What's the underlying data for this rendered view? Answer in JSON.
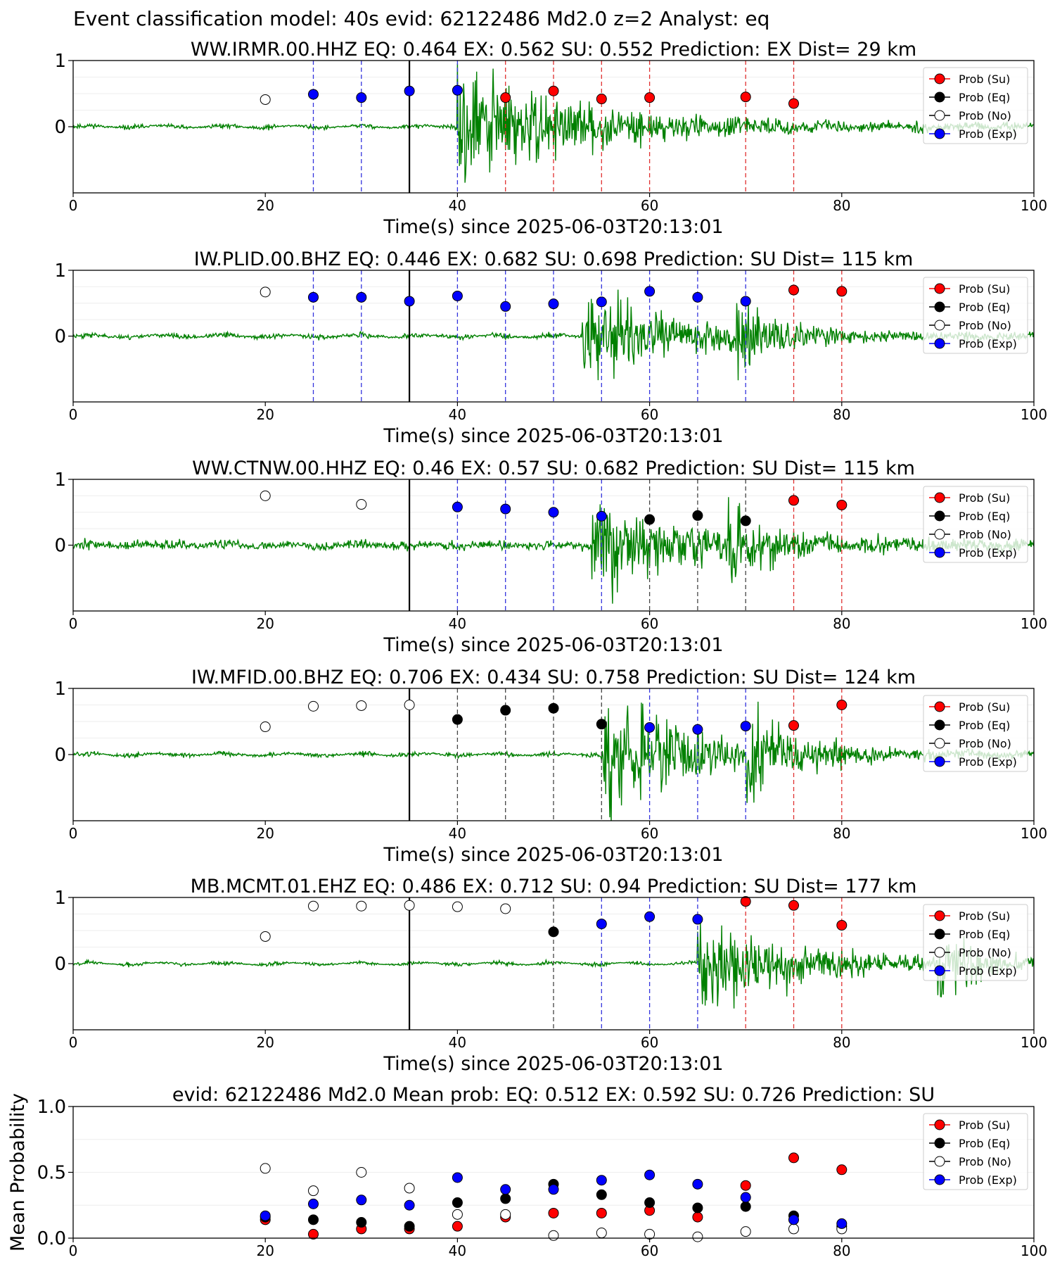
{
  "page": {
    "title": "Event classification model: 40s evid: 62122486 Md2.0 z=2 Analyst: eq"
  },
  "chart_data": [
    {
      "type": "scatter",
      "title": "WW.IRMR.00.HHZ   EQ: 0.464  EX: 0.562  SU: 0.552   Prediction: EX    Dist= 29 km",
      "xlabel": "Time(s) since 2025-06-03T20:13:01",
      "ylabel": "",
      "xlim": [
        0,
        100
      ],
      "ylim": [
        -1,
        1
      ],
      "x_ticks": [
        "0",
        "20",
        "40",
        "60",
        "80",
        "100"
      ],
      "y_ticks": [
        "1",
        "0"
      ],
      "reference_line_x": 35,
      "waveform": {
        "color": "#008000",
        "onset": 40,
        "decay": 70,
        "amp": 0.85,
        "noise": 0.025,
        "seed": 11
      },
      "points": [
        {
          "x": 20,
          "y": 0.41,
          "class": "No"
        },
        {
          "x": 25,
          "y": 0.49,
          "class": "Exp"
        },
        {
          "x": 30,
          "y": 0.44,
          "class": "Exp"
        },
        {
          "x": 35,
          "y": 0.54,
          "class": "Exp"
        },
        {
          "x": 40,
          "y": 0.55,
          "class": "Exp"
        },
        {
          "x": 45,
          "y": 0.44,
          "class": "Su"
        },
        {
          "x": 50,
          "y": 0.54,
          "class": "Su"
        },
        {
          "x": 55,
          "y": 0.42,
          "class": "Su"
        },
        {
          "x": 60,
          "y": 0.44,
          "class": "Su"
        },
        {
          "x": 70,
          "y": 0.45,
          "class": "Su"
        },
        {
          "x": 75,
          "y": 0.35,
          "class": "Su"
        }
      ],
      "legend": {
        "location": "upper-right",
        "entries": [
          "Prob (Su)",
          "Prob (Eq)",
          "Prob (No)",
          "Prob (Exp)"
        ]
      }
    },
    {
      "type": "scatter",
      "title": "IW.PLID.00.BHZ   EQ: 0.446  EX: 0.682  SU: 0.698   Prediction: SU    Dist= 115 km",
      "xlabel": "Time(s) since 2025-06-03T20:13:01",
      "ylabel": "",
      "xlim": [
        0,
        100
      ],
      "ylim": [
        -1,
        1
      ],
      "x_ticks": [
        "0",
        "20",
        "40",
        "60",
        "80",
        "100"
      ],
      "y_ticks": [
        "1",
        "0"
      ],
      "reference_line_x": 35,
      "waveform": {
        "color": "#008000",
        "onset": 53,
        "decay": 80,
        "amp": 0.6,
        "noise": 0.03,
        "seed": 23,
        "burst": 69
      },
      "points": [
        {
          "x": 20,
          "y": 0.67,
          "class": "No"
        },
        {
          "x": 25,
          "y": 0.59,
          "class": "Exp"
        },
        {
          "x": 30,
          "y": 0.59,
          "class": "Exp"
        },
        {
          "x": 35,
          "y": 0.53,
          "class": "Exp"
        },
        {
          "x": 40,
          "y": 0.61,
          "class": "Exp"
        },
        {
          "x": 45,
          "y": 0.45,
          "class": "Exp"
        },
        {
          "x": 50,
          "y": 0.49,
          "class": "Exp"
        },
        {
          "x": 55,
          "y": 0.52,
          "class": "Exp"
        },
        {
          "x": 60,
          "y": 0.68,
          "class": "Exp"
        },
        {
          "x": 65,
          "y": 0.59,
          "class": "Exp"
        },
        {
          "x": 70,
          "y": 0.53,
          "class": "Exp"
        },
        {
          "x": 75,
          "y": 0.7,
          "class": "Su"
        },
        {
          "x": 80,
          "y": 0.68,
          "class": "Su"
        }
      ],
      "legend": {
        "location": "upper-right",
        "entries": [
          "Prob (Su)",
          "Prob (Eq)",
          "Prob (No)",
          "Prob (Exp)"
        ]
      }
    },
    {
      "type": "scatter",
      "title": "WW.CTNW.00.HHZ   EQ: 0.46  EX: 0.57  SU: 0.682   Prediction: SU    Dist= 115 km",
      "xlabel": "Time(s) since 2025-06-03T20:13:01",
      "ylabel": "",
      "xlim": [
        0,
        100
      ],
      "ylim": [
        -1,
        1
      ],
      "x_ticks": [
        "0",
        "20",
        "40",
        "60",
        "80",
        "100"
      ],
      "y_ticks": [
        "1",
        "0"
      ],
      "reference_line_x": 35,
      "waveform": {
        "color": "#008000",
        "onset": 54,
        "decay": 82,
        "amp": 0.55,
        "noise": 0.06,
        "seed": 37,
        "burst": 68
      },
      "points": [
        {
          "x": 20,
          "y": 0.75,
          "class": "No"
        },
        {
          "x": 30,
          "y": 0.62,
          "class": "No"
        },
        {
          "x": 40,
          "y": 0.58,
          "class": "Exp"
        },
        {
          "x": 45,
          "y": 0.55,
          "class": "Exp"
        },
        {
          "x": 50,
          "y": 0.5,
          "class": "Exp"
        },
        {
          "x": 55,
          "y": 0.44,
          "class": "Exp"
        },
        {
          "x": 60,
          "y": 0.39,
          "class": "Eq"
        },
        {
          "x": 65,
          "y": 0.45,
          "class": "Eq"
        },
        {
          "x": 70,
          "y": 0.37,
          "class": "Eq"
        },
        {
          "x": 75,
          "y": 0.68,
          "class": "Su"
        },
        {
          "x": 80,
          "y": 0.61,
          "class": "Su"
        }
      ],
      "legend": {
        "location": "upper-right",
        "entries": [
          "Prob (Su)",
          "Prob (Eq)",
          "Prob (No)",
          "Prob (Exp)"
        ]
      }
    },
    {
      "type": "scatter",
      "title": "IW.MFID.00.BHZ   EQ: 0.706  EX: 0.434  SU: 0.758   Prediction: SU    Dist= 124 km",
      "xlabel": "Time(s) since 2025-06-03T20:13:01",
      "ylabel": "",
      "xlim": [
        0,
        100
      ],
      "ylim": [
        -1,
        1
      ],
      "x_ticks": [
        "0",
        "20",
        "40",
        "60",
        "80",
        "100"
      ],
      "y_ticks": [
        "1",
        "0"
      ],
      "reference_line_x": 35,
      "waveform": {
        "color": "#008000",
        "onset": 55,
        "decay": 82,
        "amp": 0.7,
        "noise": 0.025,
        "seed": 51,
        "burst": 70
      },
      "points": [
        {
          "x": 20,
          "y": 0.42,
          "class": "No"
        },
        {
          "x": 25,
          "y": 0.73,
          "class": "No"
        },
        {
          "x": 30,
          "y": 0.74,
          "class": "No"
        },
        {
          "x": 35,
          "y": 0.75,
          "class": "No"
        },
        {
          "x": 40,
          "y": 0.53,
          "class": "Eq"
        },
        {
          "x": 45,
          "y": 0.67,
          "class": "Eq"
        },
        {
          "x": 50,
          "y": 0.7,
          "class": "Eq"
        },
        {
          "x": 55,
          "y": 0.46,
          "class": "Eq"
        },
        {
          "x": 60,
          "y": 0.41,
          "class": "Exp"
        },
        {
          "x": 65,
          "y": 0.38,
          "class": "Exp"
        },
        {
          "x": 70,
          "y": 0.43,
          "class": "Exp"
        },
        {
          "x": 75,
          "y": 0.44,
          "class": "Su"
        },
        {
          "x": 80,
          "y": 0.75,
          "class": "Su"
        }
      ],
      "legend": {
        "location": "upper-right",
        "entries": [
          "Prob (Su)",
          "Prob (Eq)",
          "Prob (No)",
          "Prob (Exp)"
        ]
      }
    },
    {
      "type": "scatter",
      "title": "MB.MCMT.01.EHZ   EQ: 0.486  EX: 0.712  SU: 0.94   Prediction: SU    Dist= 177 km",
      "xlabel": "Time(s) since 2025-06-03T20:13:01",
      "ylabel": "",
      "xlim": [
        0,
        100
      ],
      "ylim": [
        -1,
        1
      ],
      "x_ticks": [
        "0",
        "20",
        "40",
        "60",
        "80",
        "100"
      ],
      "y_ticks": [
        "1",
        "0"
      ],
      "reference_line_x": 35,
      "waveform": {
        "color": "#008000",
        "onset": 65,
        "decay": 88,
        "amp": 0.6,
        "noise": 0.02,
        "seed": 67,
        "burst": 90
      },
      "points": [
        {
          "x": 20,
          "y": 0.41,
          "class": "No"
        },
        {
          "x": 25,
          "y": 0.87,
          "class": "No"
        },
        {
          "x": 30,
          "y": 0.87,
          "class": "No"
        },
        {
          "x": 35,
          "y": 0.88,
          "class": "No"
        },
        {
          "x": 40,
          "y": 0.86,
          "class": "No"
        },
        {
          "x": 45,
          "y": 0.83,
          "class": "No"
        },
        {
          "x": 50,
          "y": 0.48,
          "class": "Eq"
        },
        {
          "x": 55,
          "y": 0.6,
          "class": "Exp"
        },
        {
          "x": 60,
          "y": 0.71,
          "class": "Exp"
        },
        {
          "x": 65,
          "y": 0.67,
          "class": "Exp"
        },
        {
          "x": 70,
          "y": 0.94,
          "class": "Su"
        },
        {
          "x": 75,
          "y": 0.88,
          "class": "Su"
        },
        {
          "x": 80,
          "y": 0.58,
          "class": "Su"
        }
      ],
      "legend": {
        "location": "upper-right",
        "entries": [
          "Prob (Su)",
          "Prob (Eq)",
          "Prob (No)",
          "Prob (Exp)"
        ]
      }
    },
    {
      "type": "scatter",
      "title": "evid: 62122486  Md2.0   Mean prob:   EQ: 0.512  EX: 0.592  SU: 0.726   Prediction: SU",
      "xlabel": "",
      "ylabel": "Mean Probability",
      "xlim": [
        0,
        100
      ],
      "ylim": [
        0,
        1
      ],
      "x_ticks": [
        "0",
        "20",
        "40",
        "60",
        "80",
        "100"
      ],
      "y_ticks": [
        "1.0",
        "0.5",
        "0.0"
      ],
      "series": [
        {
          "name": "Prob (Su)",
          "x": [
            20,
            25,
            30,
            35,
            40,
            45,
            50,
            55,
            60,
            65,
            70,
            75,
            80
          ],
          "values": [
            0.14,
            0.03,
            0.07,
            0.07,
            0.09,
            0.16,
            0.19,
            0.19,
            0.21,
            0.16,
            0.4,
            0.61,
            0.52
          ]
        },
        {
          "name": "Prob (Eq)",
          "x": [
            20,
            25,
            30,
            35,
            40,
            45,
            50,
            55,
            60,
            65,
            70,
            75,
            80
          ],
          "values": [
            0.16,
            0.14,
            0.12,
            0.09,
            0.27,
            0.3,
            0.41,
            0.33,
            0.27,
            0.23,
            0.24,
            0.17,
            0.09
          ]
        },
        {
          "name": "Prob (No)",
          "x": [
            20,
            25,
            30,
            35,
            40,
            45,
            50,
            55,
            60,
            65,
            70,
            75,
            80
          ],
          "values": [
            0.53,
            0.36,
            0.5,
            0.38,
            0.18,
            0.18,
            0.02,
            0.04,
            0.03,
            0.01,
            0.05,
            0.07,
            0.07
          ]
        },
        {
          "name": "Prob (Exp)",
          "x": [
            20,
            25,
            30,
            35,
            40,
            45,
            50,
            55,
            60,
            65,
            70,
            75,
            80
          ],
          "values": [
            0.17,
            0.26,
            0.29,
            0.25,
            0.46,
            0.37,
            0.37,
            0.44,
            0.48,
            0.41,
            0.31,
            0.14,
            0.11
          ]
        }
      ],
      "legend": {
        "location": "upper-right",
        "entries": [
          "Prob (Su)",
          "Prob (Eq)",
          "Prob (No)",
          "Prob (Exp)"
        ]
      }
    }
  ],
  "colors": {
    "Su": "#ff0000",
    "Eq": "#000000",
    "No": "#ffffff",
    "Exp": "#0000ff",
    "waveform": "#008000"
  }
}
